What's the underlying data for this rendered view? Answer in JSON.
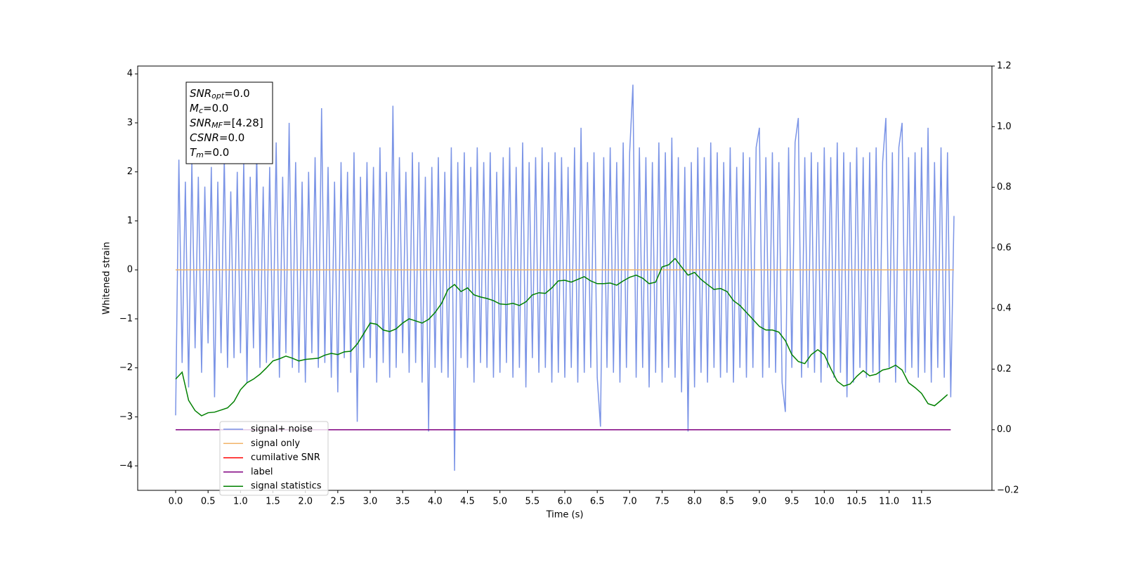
{
  "chart_data": {
    "type": "line",
    "xlabel": "Time (s)",
    "ylabel": "Whitened strain",
    "xlim": [
      -0.585,
      12.585
    ],
    "ylim": [
      -4.5,
      4.16
    ],
    "y2lim": [
      -0.2,
      1.2
    ],
    "xticks": [
      {
        "value": 0,
        "label": "0.0"
      },
      {
        "value": 0.5,
        "label": "0.5"
      },
      {
        "value": 1,
        "label": "1.0"
      },
      {
        "value": 1.5,
        "label": "1.5"
      },
      {
        "value": 2,
        "label": "2.0"
      },
      {
        "value": 2.5,
        "label": "2.5"
      },
      {
        "value": 3,
        "label": "3.0"
      },
      {
        "value": 3.5,
        "label": "3.5"
      },
      {
        "value": 4,
        "label": "4.0"
      },
      {
        "value": 4.5,
        "label": "4.5"
      },
      {
        "value": 5,
        "label": "5.0"
      },
      {
        "value": 5.5,
        "label": "5.5"
      },
      {
        "value": 6,
        "label": "6.0"
      },
      {
        "value": 6.5,
        "label": "6.5"
      },
      {
        "value": 7,
        "label": "7.0"
      },
      {
        "value": 7.5,
        "label": "7.5"
      },
      {
        "value": 8,
        "label": "8.0"
      },
      {
        "value": 8.5,
        "label": "8.5"
      },
      {
        "value": 9,
        "label": "9.0"
      },
      {
        "value": 9.5,
        "label": "9.5"
      },
      {
        "value": 10,
        "label": "10.0"
      },
      {
        "value": 10.5,
        "label": "10.5"
      },
      {
        "value": 11,
        "label": "11.0"
      },
      {
        "value": 11.5,
        "label": "11.5"
      }
    ],
    "yticks": [
      4,
      3,
      2,
      1,
      0,
      {
        "value": -1,
        "label": "−1"
      },
      {
        "value": -2,
        "label": "−2"
      },
      {
        "value": -3,
        "label": "−3"
      },
      {
        "value": -4,
        "label": "−4"
      }
    ],
    "y2ticks": [
      {
        "value": -0.2,
        "label": "−0.2"
      },
      {
        "value": 0,
        "label": "0.0"
      },
      {
        "value": 0.2,
        "label": "0.2"
      },
      {
        "value": 0.4,
        "label": "0.4"
      },
      {
        "value": 0.6,
        "label": "0.6"
      },
      {
        "value": 0.8,
        "label": "0.8"
      },
      {
        "value": 1,
        "label": "1.0"
      },
      {
        "value": 1.2,
        "label": "1.2"
      }
    ],
    "legend_loc": "lower left",
    "annotation": [
      {
        "main": "SNR",
        "sub": "opt",
        "text": "=0.0"
      },
      {
        "main": "M",
        "sub": "c",
        "text": "=0.0"
      },
      {
        "main": "SNR",
        "sub": "MF",
        "text": "=[4.28]"
      },
      {
        "main": "CSNR",
        "text": "=0.0"
      },
      {
        "main": "T",
        "sub": "m",
        "text": "=0.0"
      }
    ],
    "series": [
      {
        "name": "signal+ noise",
        "color": "#7b94e6",
        "x": [
          0,
          0.05,
          0.1,
          0.15,
          0.2,
          0.25,
          0.3,
          0.35,
          0.4,
          0.45,
          0.5,
          0.55,
          0.6,
          0.65,
          0.7,
          0.75,
          0.8,
          0.85,
          0.9,
          0.95,
          1,
          1.05,
          1.1,
          1.15,
          1.2,
          1.25,
          1.3,
          1.35,
          1.4,
          1.45,
          1.5,
          1.55,
          1.6,
          1.65,
          1.7,
          1.75,
          1.8,
          1.85,
          1.9,
          1.95,
          2,
          2.05,
          2.1,
          2.15,
          2.2,
          2.25,
          2.3,
          2.35,
          2.4,
          2.45,
          2.5,
          2.55,
          2.6,
          2.65,
          2.7,
          2.75,
          2.8,
          2.85,
          2.9,
          2.95,
          3,
          3.05,
          3.1,
          3.15,
          3.2,
          3.25,
          3.3,
          3.35,
          3.4,
          3.45,
          3.5,
          3.55,
          3.6,
          3.65,
          3.7,
          3.75,
          3.8,
          3.85,
          3.9,
          3.95,
          4,
          4.05,
          4.1,
          4.15,
          4.2,
          4.25,
          4.3,
          4.35,
          4.4,
          4.45,
          4.5,
          4.55,
          4.6,
          4.65,
          4.7,
          4.75,
          4.8,
          4.85,
          4.9,
          4.95,
          5,
          5.05,
          5.1,
          5.15,
          5.2,
          5.25,
          5.3,
          5.35,
          5.4,
          5.45,
          5.5,
          5.55,
          5.6,
          5.65,
          5.7,
          5.75,
          5.8,
          5.85,
          5.9,
          5.95,
          6,
          6.05,
          6.1,
          6.15,
          6.2,
          6.25,
          6.3,
          6.35,
          6.4,
          6.45,
          6.5,
          6.55,
          6.6,
          6.65,
          6.7,
          6.75,
          6.8,
          6.85,
          6.9,
          6.95,
          7,
          7.05,
          7.1,
          7.15,
          7.2,
          7.25,
          7.3,
          7.35,
          7.4,
          7.45,
          7.5,
          7.55,
          7.6,
          7.65,
          7.7,
          7.75,
          7.8,
          7.85,
          7.9,
          7.95,
          8,
          8.05,
          8.1,
          8.15,
          8.2,
          8.25,
          8.3,
          8.35,
          8.4,
          8.45,
          8.5,
          8.55,
          8.6,
          8.65,
          8.7,
          8.75,
          8.8,
          8.85,
          8.9,
          8.95,
          9,
          9.05,
          9.1,
          9.15,
          9.2,
          9.25,
          9.3,
          9.35,
          9.4,
          9.45,
          9.5,
          9.55,
          9.6,
          9.65,
          9.7,
          9.75,
          9.8,
          9.85,
          9.9,
          9.95,
          10,
          10.05,
          10.1,
          10.15,
          10.2,
          10.25,
          10.3,
          10.35,
          10.4,
          10.45,
          10.5,
          10.55,
          10.6,
          10.65,
          10.7,
          10.75,
          10.8,
          10.85,
          10.9,
          10.95,
          11,
          11.05,
          11.1,
          11.15,
          11.2,
          11.25,
          11.3,
          11.35,
          11.4,
          11.45,
          11.5,
          11.55,
          11.6,
          11.65,
          11.7,
          11.75,
          11.8,
          11.85,
          11.9,
          11.95,
          12
        ],
        "values": [
          -2.97,
          2.25,
          -1.9,
          1.8,
          -2.4,
          2.2,
          -1.6,
          1.9,
          -2.1,
          1.7,
          -1.5,
          2.1,
          -2.6,
          1.8,
          -1.7,
          2.3,
          -2.0,
          1.6,
          -1.8,
          2.0,
          -1.7,
          2.2,
          -2.3,
          1.9,
          -1.6,
          2.4,
          -2.0,
          1.7,
          -1.9,
          2.1,
          -1.8,
          2.6,
          -2.2,
          1.9,
          -1.7,
          3.0,
          -2.0,
          2.2,
          -2.1,
          1.8,
          -2.3,
          2.0,
          -1.7,
          2.3,
          -2.0,
          3.3,
          -1.9,
          2.1,
          -2.2,
          1.8,
          -2.5,
          2.2,
          -1.8,
          2.0,
          -2.1,
          2.4,
          -3.1,
          1.9,
          -2.0,
          2.2,
          -1.8,
          2.1,
          -2.3,
          2.5,
          -1.9,
          2.0,
          -2.2,
          3.35,
          -2.0,
          2.3,
          -1.7,
          2.0,
          -2.1,
          2.4,
          -1.9,
          2.2,
          -2.3,
          1.9,
          -3.3,
          2.1,
          -2.0,
          2.3,
          -2.1,
          2.0,
          -2.2,
          2.5,
          -4.1,
          2.2,
          -1.8,
          2.4,
          -2.0,
          2.1,
          -2.3,
          2.5,
          -1.9,
          2.2,
          -2.0,
          2.4,
          -2.2,
          2.0,
          -2.1,
          2.3,
          -1.9,
          2.5,
          -2.2,
          2.1,
          -2.0,
          2.6,
          -2.4,
          2.2,
          -1.8,
          2.3,
          -2.1,
          2.5,
          -2.0,
          2.2,
          -2.3,
          2.4,
          -2.1,
          2.3,
          -2.2,
          2.1,
          -2.0,
          2.5,
          -2.3,
          2.9,
          -2.1,
          2.2,
          -2.0,
          2.4,
          -2.2,
          -3.2,
          2.3,
          -2.0,
          2.5,
          -2.1,
          2.2,
          -2.3,
          2.6,
          -2.0,
          2.4,
          3.78,
          -2.2,
          2.5,
          -2.0,
          2.3,
          -2.4,
          2.2,
          -2.1,
          2.6,
          -2.3,
          2.4,
          -2.0,
          2.7,
          -2.2,
          2.3,
          -2.5,
          2.1,
          -3.3,
          2.2,
          -2.4,
          2.5,
          -2.1,
          2.3,
          -2.3,
          2.6,
          -2.0,
          2.4,
          -2.2,
          2.2,
          -2.1,
          2.5,
          -2.3,
          2.1,
          -2.0,
          2.4,
          -2.2,
          2.3,
          -2.0,
          2.5,
          2.9,
          -2.2,
          2.3,
          -2.0,
          2.4,
          -2.1,
          2.2,
          -2.3,
          -2.9,
          2.5,
          -2.0,
          2.6,
          3.1,
          -2.2,
          2.3,
          -2.0,
          2.4,
          -2.1,
          2.2,
          -2.3,
          2.5,
          -2.0,
          2.3,
          -2.2,
          2.6,
          -2.1,
          2.4,
          -2.6,
          2.2,
          -2.3,
          2.5,
          -2.0,
          2.3,
          -2.2,
          2.4,
          -2.1,
          2.5,
          -2.3,
          2.2,
          3.1,
          -2.0,
          2.4,
          -2.3,
          2.5,
          3.0,
          -2.1,
          2.3,
          -2.0,
          2.4,
          -2.2,
          2.5,
          -2.1,
          2.9,
          -2.3,
          2.2,
          -2.0,
          2.5,
          -2.2,
          2.4,
          -2.6,
          1.1
        ]
      },
      {
        "name": "signal only",
        "color": "#f2b468",
        "x": [
          0,
          12
        ],
        "values": [
          0,
          0
        ]
      },
      {
        "name": "cumilative SNR",
        "color": "#ff0000",
        "x": [],
        "values": []
      },
      {
        "name": "label",
        "color": "#800080",
        "axis": "y2",
        "x": [
          0,
          11.95
        ],
        "values": [
          0,
          0
        ]
      },
      {
        "name": "signal statistics",
        "color": "#008000",
        "axis": "y2",
        "x": [
          0,
          0.1,
          0.2,
          0.3,
          0.4,
          0.5,
          0.6,
          0.7,
          0.8,
          0.9,
          1,
          1.1,
          1.2,
          1.3,
          1.4,
          1.5,
          1.6,
          1.7,
          1.8,
          1.9,
          2,
          2.1,
          2.2,
          2.3,
          2.4,
          2.5,
          2.6,
          2.7,
          2.8,
          2.9,
          3,
          3.1,
          3.2,
          3.3,
          3.4,
          3.5,
          3.6,
          3.7,
          3.8,
          3.9,
          4,
          4.1,
          4.2,
          4.3,
          4.4,
          4.5,
          4.6,
          4.7,
          4.8,
          4.9,
          5,
          5.1,
          5.2,
          5.3,
          5.4,
          5.5,
          5.6,
          5.7,
          5.8,
          5.9,
          6,
          6.1,
          6.2,
          6.3,
          6.4,
          6.5,
          6.6,
          6.7,
          6.8,
          6.9,
          7,
          7.1,
          7.2,
          7.3,
          7.4,
          7.5,
          7.6,
          7.7,
          7.8,
          7.9,
          8,
          8.1,
          8.2,
          8.3,
          8.4,
          8.5,
          8.6,
          8.7,
          8.8,
          8.9,
          9,
          9.1,
          9.2,
          9.3,
          9.4,
          9.5,
          9.6,
          9.7,
          9.8,
          9.9,
          10,
          10.1,
          10.2,
          10.3,
          10.4,
          10.5,
          10.6,
          10.7,
          10.8,
          10.9,
          11,
          11.1,
          11.2,
          11.3,
          11.4,
          11.5,
          11.6,
          11.7,
          11.8,
          11.9
        ],
        "values": [
          0.167,
          0.19,
          0.097,
          0.063,
          0.046,
          0.056,
          0.058,
          0.065,
          0.072,
          0.093,
          0.132,
          0.155,
          0.167,
          0.183,
          0.204,
          0.227,
          0.234,
          0.243,
          0.236,
          0.227,
          0.232,
          0.234,
          0.236,
          0.246,
          0.252,
          0.248,
          0.257,
          0.259,
          0.283,
          0.317,
          0.352,
          0.348,
          0.329,
          0.324,
          0.333,
          0.352,
          0.366,
          0.359,
          0.352,
          0.364,
          0.387,
          0.417,
          0.463,
          0.479,
          0.456,
          0.468,
          0.445,
          0.438,
          0.433,
          0.426,
          0.415,
          0.413,
          0.417,
          0.41,
          0.422,
          0.445,
          0.452,
          0.45,
          0.468,
          0.491,
          0.493,
          0.487,
          0.496,
          0.505,
          0.491,
          0.482,
          0.482,
          0.484,
          0.477,
          0.491,
          0.503,
          0.51,
          0.5,
          0.482,
          0.487,
          0.537,
          0.544,
          0.565,
          0.537,
          0.51,
          0.519,
          0.496,
          0.479,
          0.463,
          0.466,
          0.456,
          0.426,
          0.41,
          0.387,
          0.364,
          0.341,
          0.329,
          0.329,
          0.322,
          0.294,
          0.248,
          0.225,
          0.218,
          0.248,
          0.264,
          0.248,
          0.202,
          0.16,
          0.144,
          0.151,
          0.176,
          0.195,
          0.178,
          0.183,
          0.197,
          0.202,
          0.213,
          0.197,
          0.155,
          0.139,
          0.12,
          0.086,
          0.079,
          0.097,
          0.116
        ]
      }
    ]
  }
}
